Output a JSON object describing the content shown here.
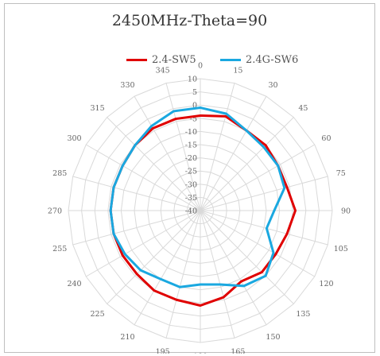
{
  "chart_data": {
    "type": "radar",
    "title": "2450MHz-Theta=90",
    "angles": [
      0,
      15,
      30,
      45,
      60,
      75,
      90,
      105,
      120,
      135,
      150,
      165,
      180,
      195,
      210,
      225,
      240,
      255,
      270,
      285,
      300,
      315,
      330,
      345
    ],
    "angle_labels": [
      "0",
      "15",
      "30",
      "45",
      "60",
      "75",
      "90",
      "105",
      "120",
      "135",
      "150",
      "165",
      "180",
      "195",
      "210",
      "225",
      "240",
      "255",
      "270",
      "285",
      "300",
      "315",
      "330",
      "345"
    ],
    "radial_ticks": [
      "10",
      "5",
      "0",
      "-5",
      "-10",
      "-15",
      "-20",
      "-25",
      "-30",
      "-35",
      "-40"
    ],
    "rlim": [
      -40,
      10
    ],
    "grid": true,
    "legend_position": "top",
    "series": [
      {
        "name": "2.4-SW5",
        "color": "#e00000",
        "values": [
          -4,
          -3,
          -5,
          -5,
          -6,
          -6,
          -4,
          -6,
          -7,
          -7,
          -9,
          -6,
          -4,
          -5,
          -5,
          -6,
          -6,
          -6,
          -6,
          -6,
          -6,
          -5,
          -4,
          -4
        ]
      },
      {
        "name": "2.4G-SW6",
        "color": "#1aa8e0",
        "values": [
          -1,
          -2,
          -5,
          -6,
          -6,
          -7,
          -12,
          -14,
          -8,
          -5,
          -7,
          -11,
          -12,
          -10,
          -10,
          -8,
          -7,
          -6,
          -6,
          -6,
          -6,
          -5,
          -3,
          -1
        ]
      }
    ]
  }
}
